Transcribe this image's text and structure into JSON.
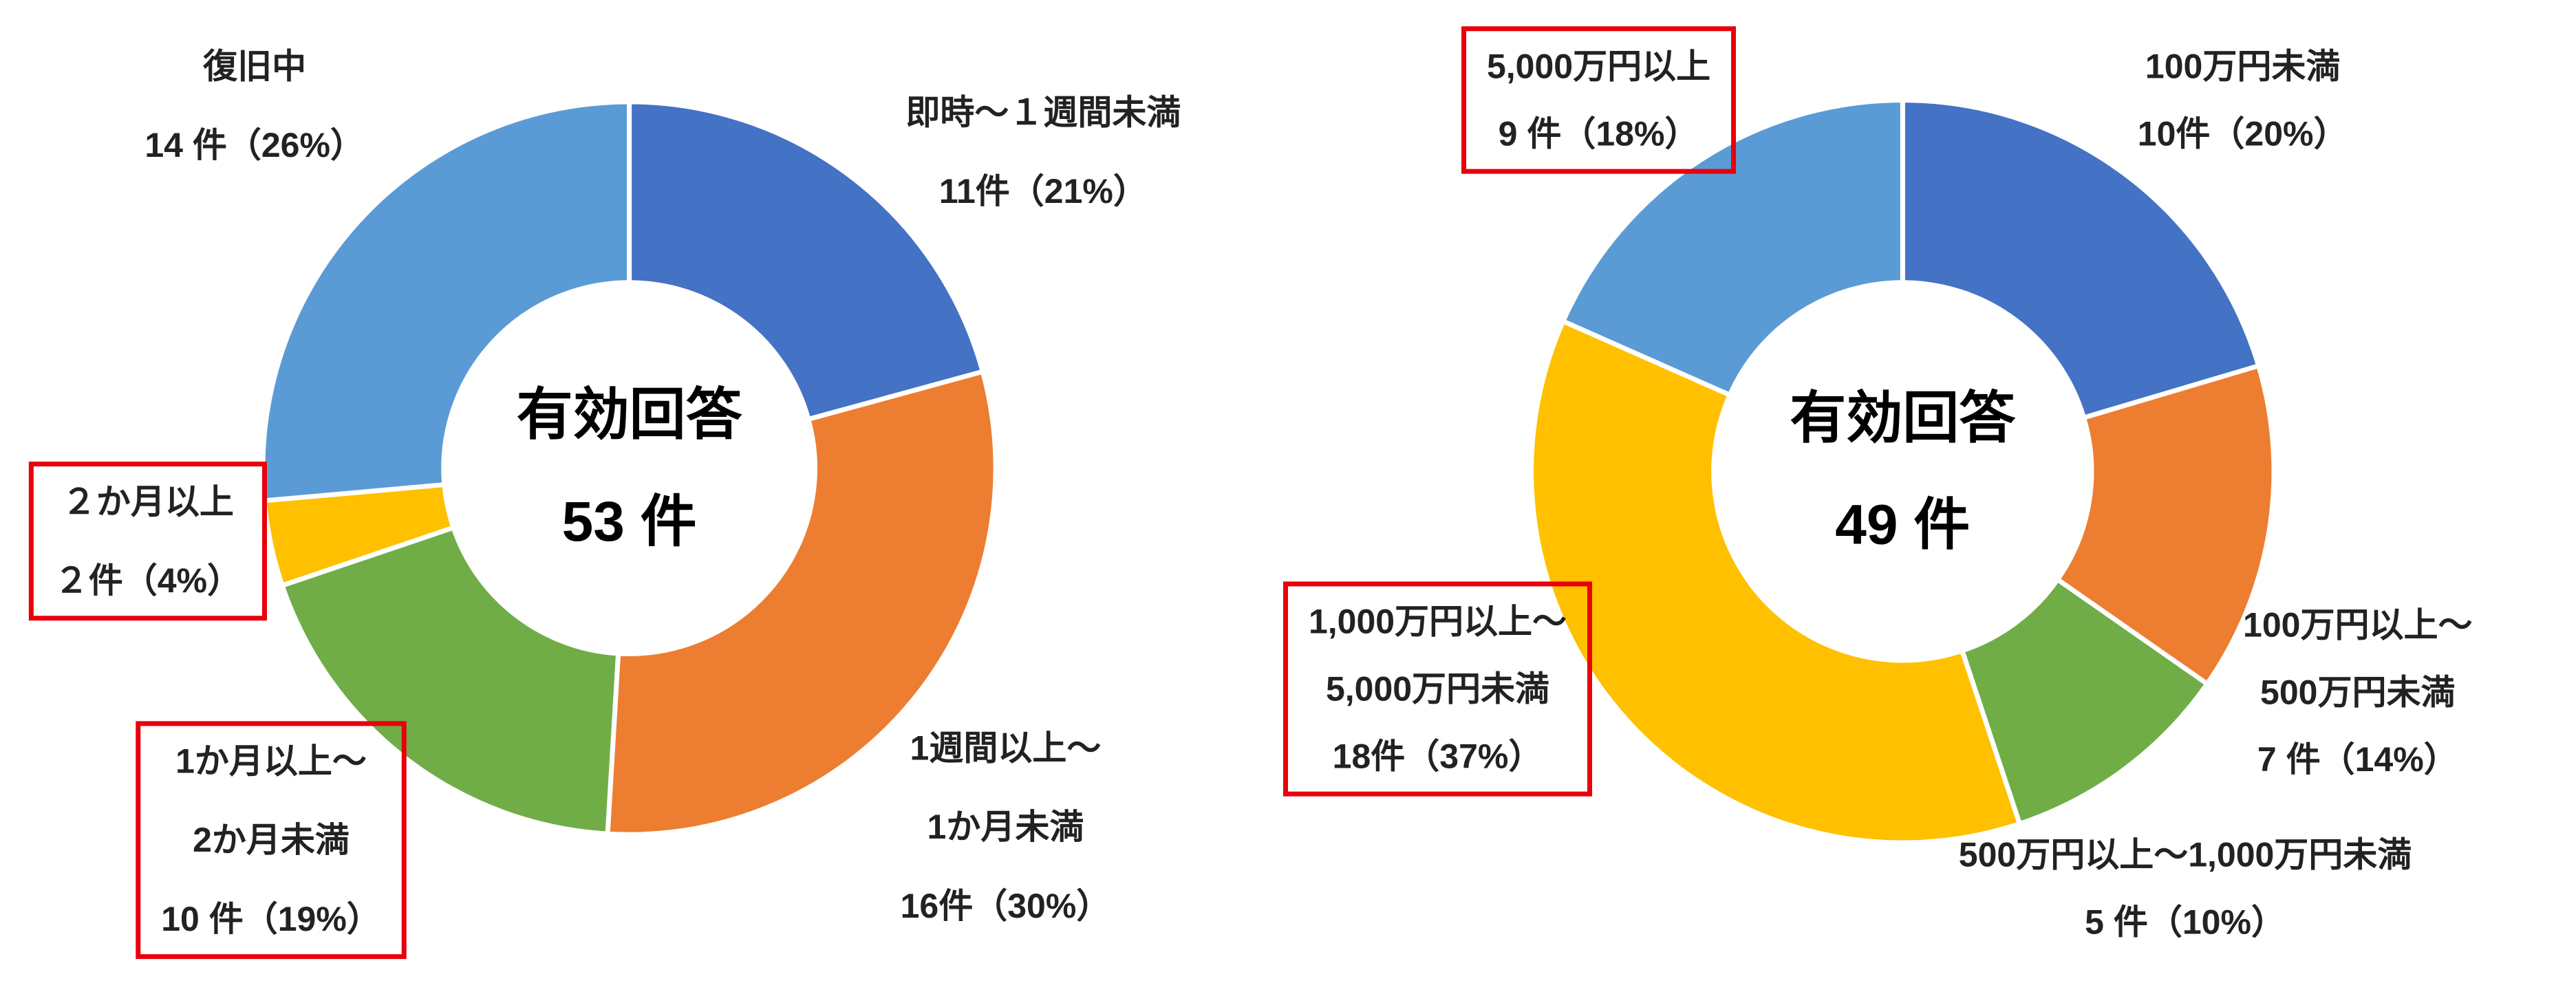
{
  "chart_data": [
    {
      "type": "donut",
      "center_text": [
        "有効回答",
        "53 件"
      ],
      "categories": [
        [
          "即時～１週間未満"
        ],
        [
          "1週間以上～",
          "1か月未満"
        ],
        [
          "1か月以上～",
          "2か月未満"
        ],
        [
          "２か月以上"
        ],
        [
          "復旧中"
        ]
      ],
      "values": [
        11,
        16,
        10,
        2,
        14
      ],
      "value_labels": [
        "11件（21%）",
        "16件（30%）",
        "10 件（19%）",
        "２件（4%）",
        "14 件（26%）"
      ],
      "colors": [
        "#4472c4",
        "#ed7d31",
        "#70ad47",
        "#ffc000",
        "#5b9bd5"
      ],
      "highlighted": [
        false,
        false,
        true,
        true,
        false
      ]
    },
    {
      "type": "donut",
      "center_text": [
        "有効回答",
        "49 件"
      ],
      "categories": [
        [
          "100万円未満"
        ],
        [
          "100万円以上～",
          "500万円未満"
        ],
        [
          "500万円以上～1,000万円未満"
        ],
        [
          "1,000万円以上～",
          "5,000万円未満"
        ],
        [
          "5,000万円以上"
        ]
      ],
      "values": [
        10,
        7,
        5,
        18,
        9
      ],
      "value_labels": [
        "10件（20%）",
        "7 件（14%）",
        "5 件（10%）",
        "18件（37%）",
        "9 件（18%）"
      ],
      "colors": [
        "#4472c4",
        "#ed7d31",
        "#70ad47",
        "#ffc000",
        "#5b9bd5"
      ],
      "highlighted": [
        false,
        false,
        false,
        true,
        true
      ]
    }
  ]
}
